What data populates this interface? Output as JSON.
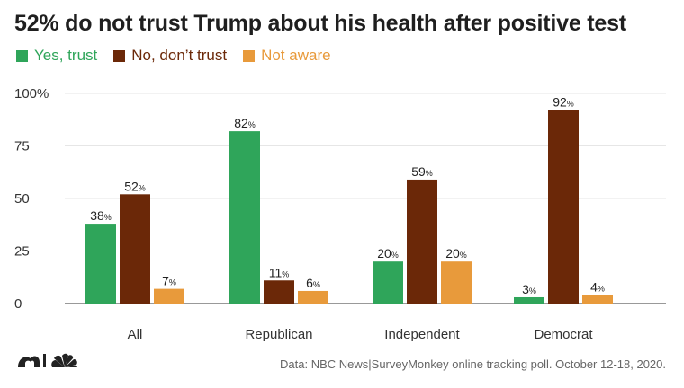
{
  "colors": {
    "yes": "#2fa55a",
    "no": "#6b2808",
    "not_aware": "#e89a3b",
    "grid": "#e6e6e6",
    "axis": "#333333"
  },
  "chart_data": {
    "type": "bar",
    "title": "52% do not trust Trump about his health after positive test",
    "categories": [
      "All",
      "Republican",
      "Independent",
      "Democrat"
    ],
    "series": [
      {
        "name": "Yes, trust",
        "values": [
          38,
          82,
          20,
          3
        ]
      },
      {
        "name": "No, don’t trust",
        "values": [
          52,
          11,
          59,
          92
        ]
      },
      {
        "name": "Not aware",
        "values": [
          7,
          6,
          20,
          4
        ]
      }
    ],
    "ylim": [
      0,
      100
    ],
    "yticks": [
      "0",
      "25",
      "50",
      "75",
      "100%"
    ],
    "ytick_values": [
      0,
      25,
      50,
      75,
      100
    ],
    "value_suffix": "%",
    "grid": true,
    "legend_position": "top-left",
    "xlabel": "",
    "ylabel": ""
  },
  "source": "Data: NBC News|SurveyMonkey online tracking poll. October 12-18, 2020.",
  "logo_icon": "nbc-peacock-logo-icon"
}
